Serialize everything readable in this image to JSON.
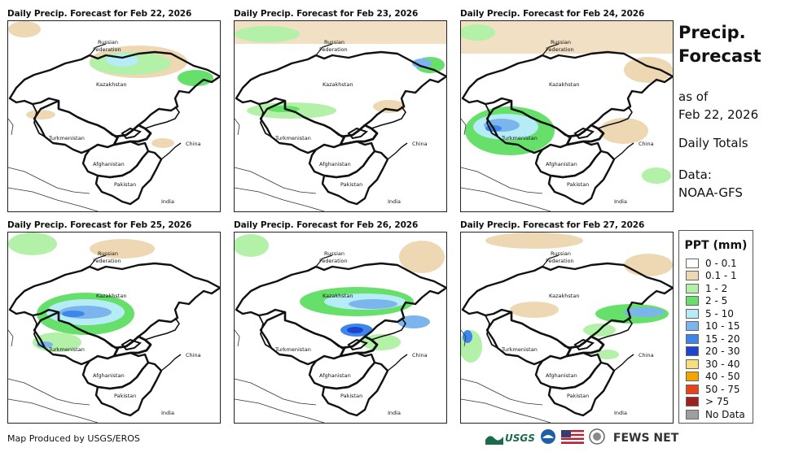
{
  "panels": [
    {
      "title": "Daily Precip. Forecast for Feb 22, 2026"
    },
    {
      "title": "Daily Precip. Forecast for Feb 23, 2026"
    },
    {
      "title": "Daily Precip. Forecast for Feb 24, 2026"
    },
    {
      "title": "Daily Precip. Forecast for Feb 25, 2026"
    },
    {
      "title": "Daily Precip. Forecast for Feb 26, 2026"
    },
    {
      "title": "Daily Precip. Forecast for Feb 27, 2026"
    }
  ],
  "map_labels": {
    "russia_1": "Russian",
    "russia_2": "Federation",
    "kazakhstan": "Kazakhstan",
    "turkmenistan": "Turkmenistan",
    "afghanistan": "Afghanistan",
    "pakistan": "Pakistan",
    "china": "China",
    "india": "India"
  },
  "side": {
    "title_1": "Precip.",
    "title_2": "Forecast",
    "asof_1": "as of",
    "asof_2": "Feb 22, 2026",
    "totals": "Daily Totals",
    "data_1": "Data:",
    "data_2": "NOAA-GFS"
  },
  "legend": {
    "title": "PPT (mm)",
    "items": [
      {
        "label": "0 - 0.1",
        "color": "#ffffff"
      },
      {
        "label": "0.1 - 1",
        "color": "#eed8b4"
      },
      {
        "label": "1 - 2",
        "color": "#b3f0a8"
      },
      {
        "label": "2 - 5",
        "color": "#66e06a"
      },
      {
        "label": "5 - 10",
        "color": "#b5ecf5"
      },
      {
        "label": "10 - 15",
        "color": "#7cb4ee"
      },
      {
        "label": "15 - 20",
        "color": "#3f86ea"
      },
      {
        "label": "20 - 30",
        "color": "#1c44d0"
      },
      {
        "label": "30 - 40",
        "color": "#f7dd7b"
      },
      {
        "label": "40 - 50",
        "color": "#f5a300"
      },
      {
        "label": "50 - 75",
        "color": "#e8441b"
      },
      {
        "label": "> 75",
        "color": "#a0201c"
      },
      {
        "label": "No Data",
        "color": "#9e9e9e"
      }
    ]
  },
  "footer": {
    "credit": "Map Produced by USGS/EROS",
    "usgs": "USGS",
    "fews": "FEWS NET"
  }
}
